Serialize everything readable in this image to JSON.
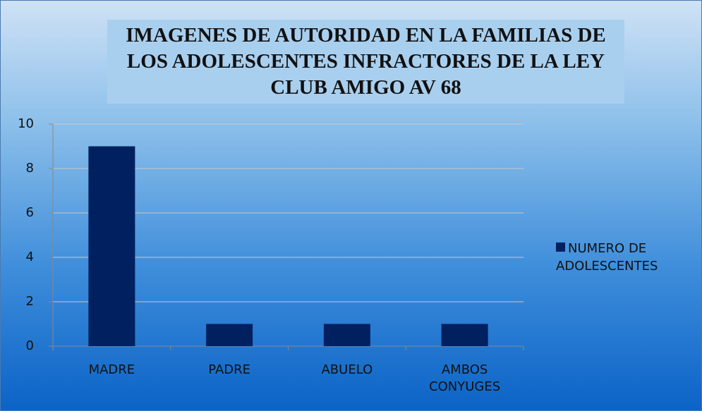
{
  "chart_data": {
    "type": "bar",
    "title": "IMAGENES DE AUTORIDAD EN LA FAMILIAS DE LOS ADOLESCENTES INFRACTORES DE LA LEY CLUB AMIGO AV 68",
    "categories": [
      "MADRE",
      "PADRE",
      "ABUELO",
      "AMBOS CONYUGES"
    ],
    "series": [
      {
        "name": "NUMERO DE ADOLESCENTES",
        "color": "#002060",
        "values": [
          9,
          1,
          1,
          1
        ]
      }
    ],
    "ylim": [
      0,
      10
    ],
    "yticks": [
      0,
      2,
      4,
      6,
      8,
      10
    ],
    "grid": true,
    "legend": "right"
  }
}
